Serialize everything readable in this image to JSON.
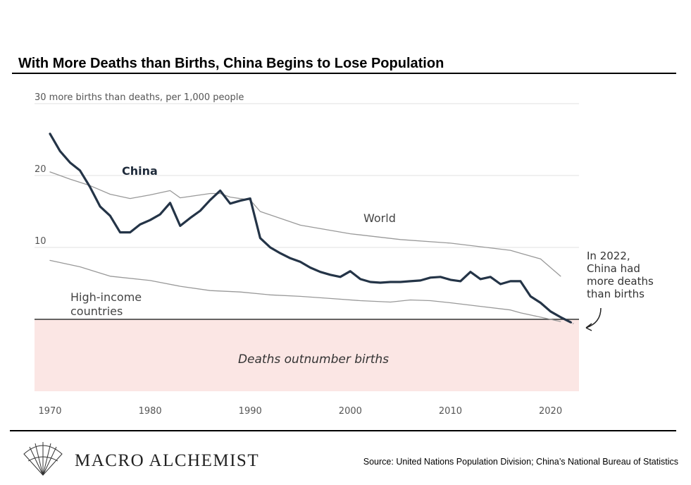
{
  "header": {
    "title": "With More Deaths than Births, China Begins to Lose Population"
  },
  "footer": {
    "brand": "MACRO ALCHEMIST",
    "source": "Source: United Nations Population Division; China’s National Bureau of Statistics"
  },
  "chart_data": {
    "type": "line",
    "title": "With More Deaths than Births, China Begins to Lose Population",
    "ylabel": "30 more births than deaths, per 1,000 people",
    "xlabel": "",
    "xlim": [
      1970,
      2022
    ],
    "ylim": [
      -10,
      30
    ],
    "x_ticks": [
      1970,
      1980,
      1990,
      2000,
      2010,
      2020
    ],
    "x_tick_labels": [
      "1970",
      "1980",
      "1990",
      "2000",
      "2010",
      "2020"
    ],
    "y_ticks": [
      10,
      20,
      30
    ],
    "y_tick_labels": [
      "10",
      "20",
      "30 more births than deaths, per 1,000 people"
    ],
    "shaded_region": {
      "label": "Deaths outnumber births",
      "from": -10,
      "to": 0,
      "color": "#fbe6e4"
    },
    "annotation": {
      "lines": [
        "In 2022,",
        "China had",
        "more deaths",
        "than births"
      ],
      "x": 2022,
      "y": -0.4
    },
    "colors": {
      "china": "#243447",
      "world": "#999999",
      "high_income": "#999999",
      "zero_line": "#333333"
    },
    "series": [
      {
        "name": "China",
        "label": "China",
        "x": [
          1970,
          1971,
          1972,
          1973,
          1974,
          1975,
          1976,
          1977,
          1978,
          1979,
          1980,
          1981,
          1982,
          1983,
          1984,
          1985,
          1986,
          1987,
          1988,
          1989,
          1990,
          1991,
          1992,
          1993,
          1994,
          1995,
          1996,
          1997,
          1998,
          1999,
          2000,
          2001,
          2002,
          2003,
          2004,
          2005,
          2006,
          2007,
          2008,
          2009,
          2010,
          2011,
          2012,
          2013,
          2014,
          2015,
          2016,
          2017,
          2018,
          2019,
          2020,
          2021,
          2022
        ],
        "values": [
          25.8,
          23.4,
          21.8,
          20.7,
          18.4,
          15.7,
          14.4,
          12.1,
          12.1,
          13.2,
          13.8,
          14.6,
          16.2,
          13.0,
          14.1,
          15.1,
          16.6,
          17.9,
          16.1,
          16.5,
          16.8,
          11.3,
          10.0,
          9.2,
          8.5,
          8.0,
          7.2,
          6.6,
          6.2,
          5.9,
          6.7,
          5.6,
          5.2,
          5.1,
          5.2,
          5.2,
          5.3,
          5.4,
          5.8,
          5.9,
          5.5,
          5.3,
          6.6,
          5.6,
          5.9,
          4.9,
          5.3,
          5.3,
          3.2,
          2.3,
          1.1,
          0.3,
          -0.4
        ]
      },
      {
        "name": "World",
        "label": "World",
        "x": [
          1970,
          1972,
          1974,
          1976,
          1978,
          1980,
          1982,
          1983,
          1986,
          1987,
          1988,
          1990,
          1991,
          1995,
          2000,
          2005,
          2010,
          2016,
          2017,
          2019,
          2021
        ],
        "values": [
          20.5,
          19.5,
          18.6,
          17.4,
          16.8,
          17.3,
          17.9,
          16.9,
          17.5,
          17.5,
          17.0,
          16.6,
          15.0,
          13.1,
          11.9,
          11.1,
          10.6,
          9.6,
          9.2,
          8.4,
          6.0
        ]
      },
      {
        "name": "High-income countries",
        "label": "High-income countries",
        "x": [
          1970,
          1973,
          1976,
          1980,
          1983,
          1986,
          1989,
          1992,
          1995,
          1998,
          2001,
          2004,
          2006,
          2008,
          2010,
          2013,
          2016,
          2017,
          2019,
          2020,
          2021
        ],
        "values": [
          8.2,
          7.3,
          6.0,
          5.4,
          4.6,
          4.0,
          3.8,
          3.4,
          3.2,
          2.9,
          2.6,
          2.4,
          2.7,
          2.6,
          2.3,
          1.8,
          1.3,
          0.9,
          0.3,
          0.0,
          -0.3
        ]
      }
    ]
  }
}
